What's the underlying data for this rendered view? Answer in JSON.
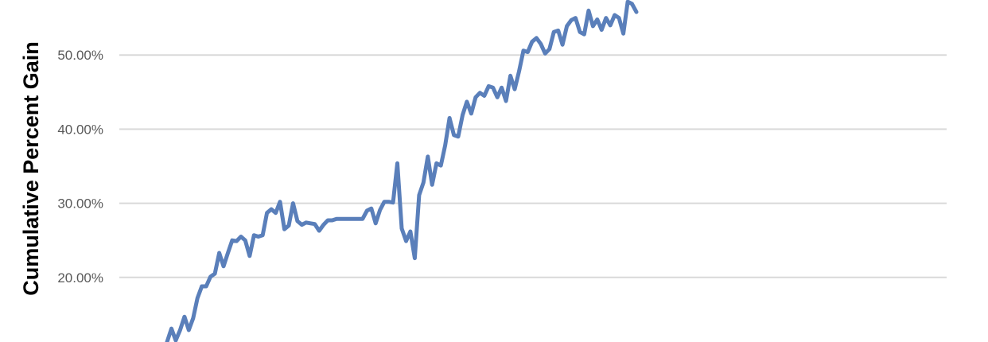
{
  "chart_data": {
    "type": "line",
    "title": "",
    "xlabel": "",
    "ylabel": "Cumulative Percent Gain",
    "ylim": [
      10,
      60
    ],
    "yticks": [
      "20.00%",
      "30.00%",
      "40.00%",
      "50.00%"
    ],
    "ytick_values": [
      20,
      30,
      40,
      50
    ],
    "grid": true,
    "line_color": "#5a7fba",
    "grid_color": "#d9d9d9",
    "series": [
      {
        "values": [
          11.3,
          13.1,
          11.5,
          12.9,
          14.7,
          12.9,
          14.5,
          17.2,
          18.8,
          18.8,
          20.1,
          20.5,
          23.3,
          21.5,
          23.3,
          25.0,
          24.9,
          25.5,
          25.0,
          22.9,
          25.7,
          25.5,
          25.7,
          28.7,
          29.2,
          28.7,
          30.2,
          26.5,
          27.0,
          30.0,
          27.6,
          27.1,
          27.4,
          27.3,
          27.2,
          26.3,
          27.1,
          27.7,
          27.7,
          27.9,
          27.9,
          27.9,
          27.9,
          27.9,
          27.9,
          27.9,
          29.0,
          29.3,
          27.3,
          29.1,
          30.2,
          30.2,
          30.1,
          35.4,
          26.6,
          24.9,
          26.2,
          22.6,
          31.1,
          32.8,
          36.3,
          32.5,
          35.4,
          35.1,
          37.8,
          41.5,
          39.2,
          39.0,
          41.9,
          43.7,
          42.1,
          44.3,
          44.9,
          44.5,
          45.8,
          45.6,
          44.3,
          45.6,
          43.8,
          47.2,
          45.4,
          47.8,
          50.6,
          50.4,
          51.8,
          52.3,
          51.5,
          50.2,
          50.8,
          53.1,
          53.3,
          51.4,
          53.9,
          54.7,
          55.0,
          53.1,
          52.8,
          56.0,
          53.9,
          54.8,
          53.4,
          55.0,
          54.0,
          55.4,
          55.0,
          52.9,
          57.2,
          56.9,
          55.8
        ]
      }
    ]
  }
}
